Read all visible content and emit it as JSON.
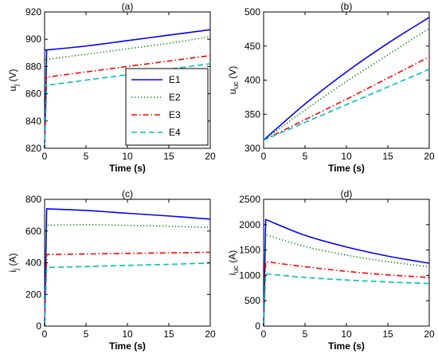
{
  "chart_data": [
    {
      "type": "line",
      "title": "(a)",
      "xlabel": "Time (s)",
      "ylabel": "u",
      "ylabel_sub": "j",
      "ylabel_unit": " (V)",
      "xlim": [
        0,
        20
      ],
      "ylim": [
        820,
        920
      ],
      "xticks": [
        0,
        5,
        10,
        15,
        20
      ],
      "yticks": [
        820,
        840,
        860,
        880,
        900,
        920
      ],
      "grid": false,
      "legend": {
        "position": "lower-right"
      },
      "x": [
        0,
        5,
        10,
        15,
        20
      ],
      "series": [
        {
          "name": "E1",
          "color": "#0000ff",
          "style": "solid",
          "start": 820,
          "values": [
            892,
            895,
            899,
            903,
            907
          ]
        },
        {
          "name": "E2",
          "color": "#008000",
          "style": "dotted",
          "start": 820,
          "values": [
            885,
            889,
            893,
            897,
            902
          ]
        },
        {
          "name": "E3",
          "color": "#ff0000",
          "style": "dashdot",
          "start": 820,
          "values": [
            872,
            876,
            880,
            884,
            888
          ]
        },
        {
          "name": "E4",
          "color": "#00bfbf",
          "style": "dashed",
          "start": 820,
          "values": [
            866,
            870,
            874,
            878,
            882
          ]
        }
      ]
    },
    {
      "type": "line",
      "title": "(b)",
      "xlabel": "Time (s)",
      "ylabel": "u",
      "ylabel_sub": "uc",
      "ylabel_unit": " (V)",
      "xlim": [
        0,
        20
      ],
      "ylim": [
        300,
        500
      ],
      "xticks": [
        0,
        5,
        10,
        15,
        20
      ],
      "yticks": [
        300,
        350,
        400,
        450,
        500
      ],
      "grid": false,
      "x": [
        0,
        5,
        10,
        15,
        20
      ],
      "series": [
        {
          "name": "E1",
          "color": "#0000ff",
          "style": "solid",
          "values": [
            312,
            365,
            412,
            454,
            492
          ]
        },
        {
          "name": "E2",
          "color": "#008000",
          "style": "dotted",
          "values": [
            312,
            356,
            398,
            437,
            476
          ]
        },
        {
          "name": "E3",
          "color": "#ff0000",
          "style": "dashdot",
          "values": [
            312,
            342,
            372,
            403,
            434
          ]
        },
        {
          "name": "E4",
          "color": "#00bfbf",
          "style": "dashed",
          "values": [
            312,
            338,
            364,
            390,
            416
          ]
        }
      ]
    },
    {
      "type": "line",
      "title": "(c)",
      "xlabel": "Time (s)",
      "ylabel": "i",
      "ylabel_sub": "j",
      "ylabel_unit": " (A)",
      "xlim": [
        0,
        20
      ],
      "ylim": [
        0,
        800
      ],
      "xticks": [
        0,
        5,
        10,
        15,
        20
      ],
      "yticks": [
        0,
        200,
        400,
        600,
        800
      ],
      "grid": false,
      "x": [
        0.3,
        5,
        10,
        15,
        20
      ],
      "series": [
        {
          "name": "E1",
          "color": "#0000ff",
          "style": "solid",
          "start": 0,
          "values": [
            740,
            730,
            712,
            695,
            675
          ]
        },
        {
          "name": "E2",
          "color": "#008000",
          "style": "dotted",
          "start": 0,
          "values": [
            637,
            640,
            636,
            630,
            622
          ]
        },
        {
          "name": "E3",
          "color": "#ff0000",
          "style": "dashdot",
          "start": 0,
          "values": [
            452,
            455,
            459,
            462,
            466
          ]
        },
        {
          "name": "E4",
          "color": "#00bfbf",
          "style": "dashed",
          "start": 0,
          "values": [
            370,
            376,
            383,
            390,
            398
          ]
        }
      ]
    },
    {
      "type": "line",
      "title": "(d)",
      "xlabel": "Time (s)",
      "ylabel": "i",
      "ylabel_sub": "uc",
      "ylabel_unit": " (A)",
      "xlim": [
        0,
        20
      ],
      "ylim": [
        0,
        2500
      ],
      "xticks": [
        0,
        5,
        10,
        15,
        20
      ],
      "yticks": [
        0,
        500,
        1000,
        1500,
        2000,
        2500
      ],
      "grid": false,
      "x": [
        0.3,
        5,
        10,
        15,
        20
      ],
      "series": [
        {
          "name": "E1",
          "color": "#0000ff",
          "style": "solid",
          "start": 0,
          "values": [
            2100,
            1790,
            1560,
            1380,
            1240
          ]
        },
        {
          "name": "E2",
          "color": "#008000",
          "style": "dotted",
          "start": 0,
          "values": [
            1800,
            1570,
            1400,
            1270,
            1170
          ]
        },
        {
          "name": "E3",
          "color": "#ff0000",
          "style": "dashdot",
          "start": 0,
          "values": [
            1270,
            1170,
            1080,
            1010,
            960
          ]
        },
        {
          "name": "E4",
          "color": "#00bfbf",
          "style": "dashed",
          "start": 0,
          "values": [
            1030,
            960,
            910,
            870,
            840
          ]
        }
      ]
    }
  ]
}
